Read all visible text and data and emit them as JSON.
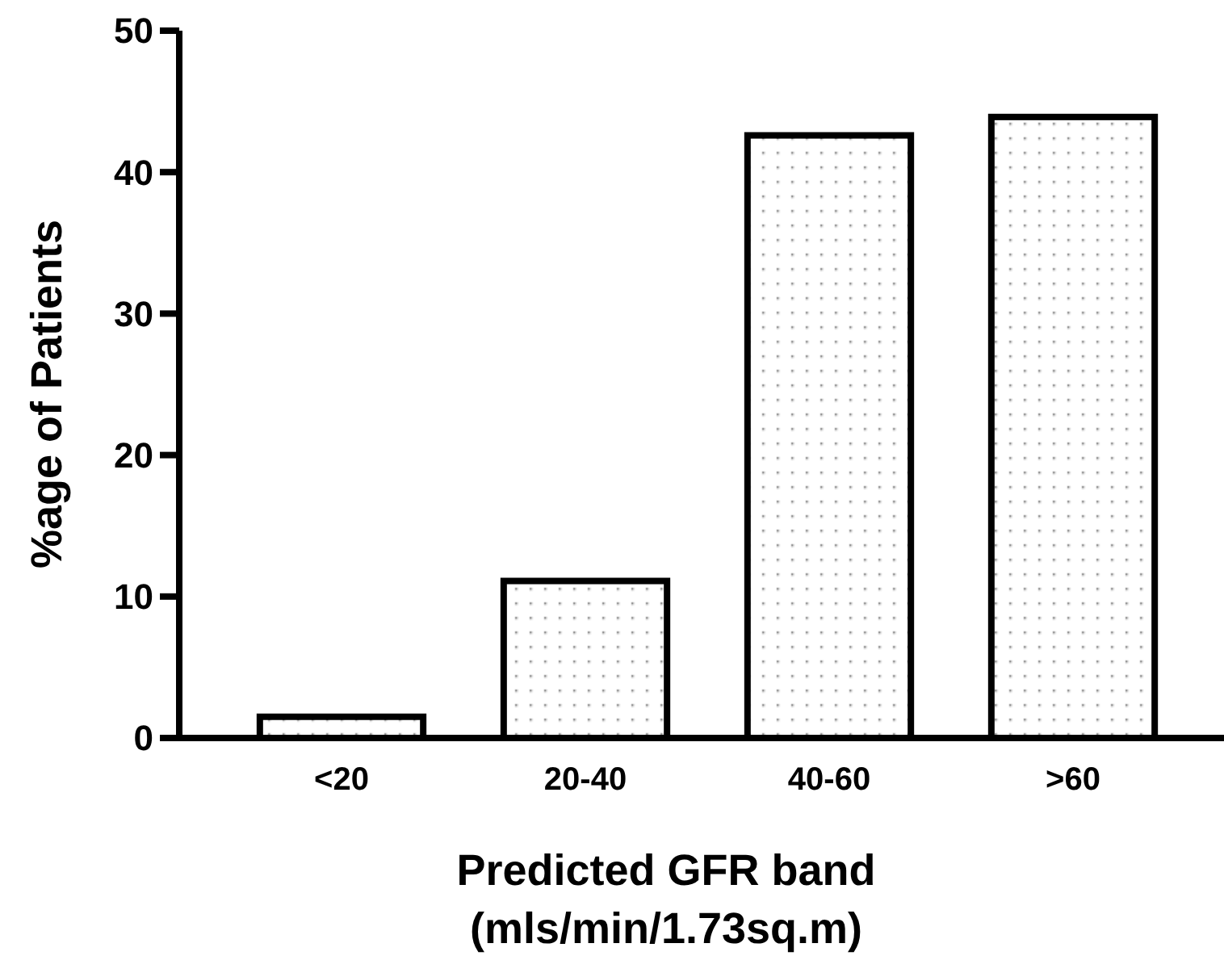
{
  "chart_data": {
    "type": "bar",
    "xlabel": "Predicted GFR band\n(mls/min/1.73sq.m)",
    "ylabel": "%age of Patients",
    "categories": [
      "<20",
      "20-40",
      "40-60",
      ">60"
    ],
    "values": [
      1.5,
      11.1,
      42.6,
      43.9
    ],
    "color": "#ffffff",
    "ylim": [
      0,
      50
    ],
    "yticks": [
      0,
      10,
      20,
      30,
      40,
      50
    ],
    "grid": false
  }
}
